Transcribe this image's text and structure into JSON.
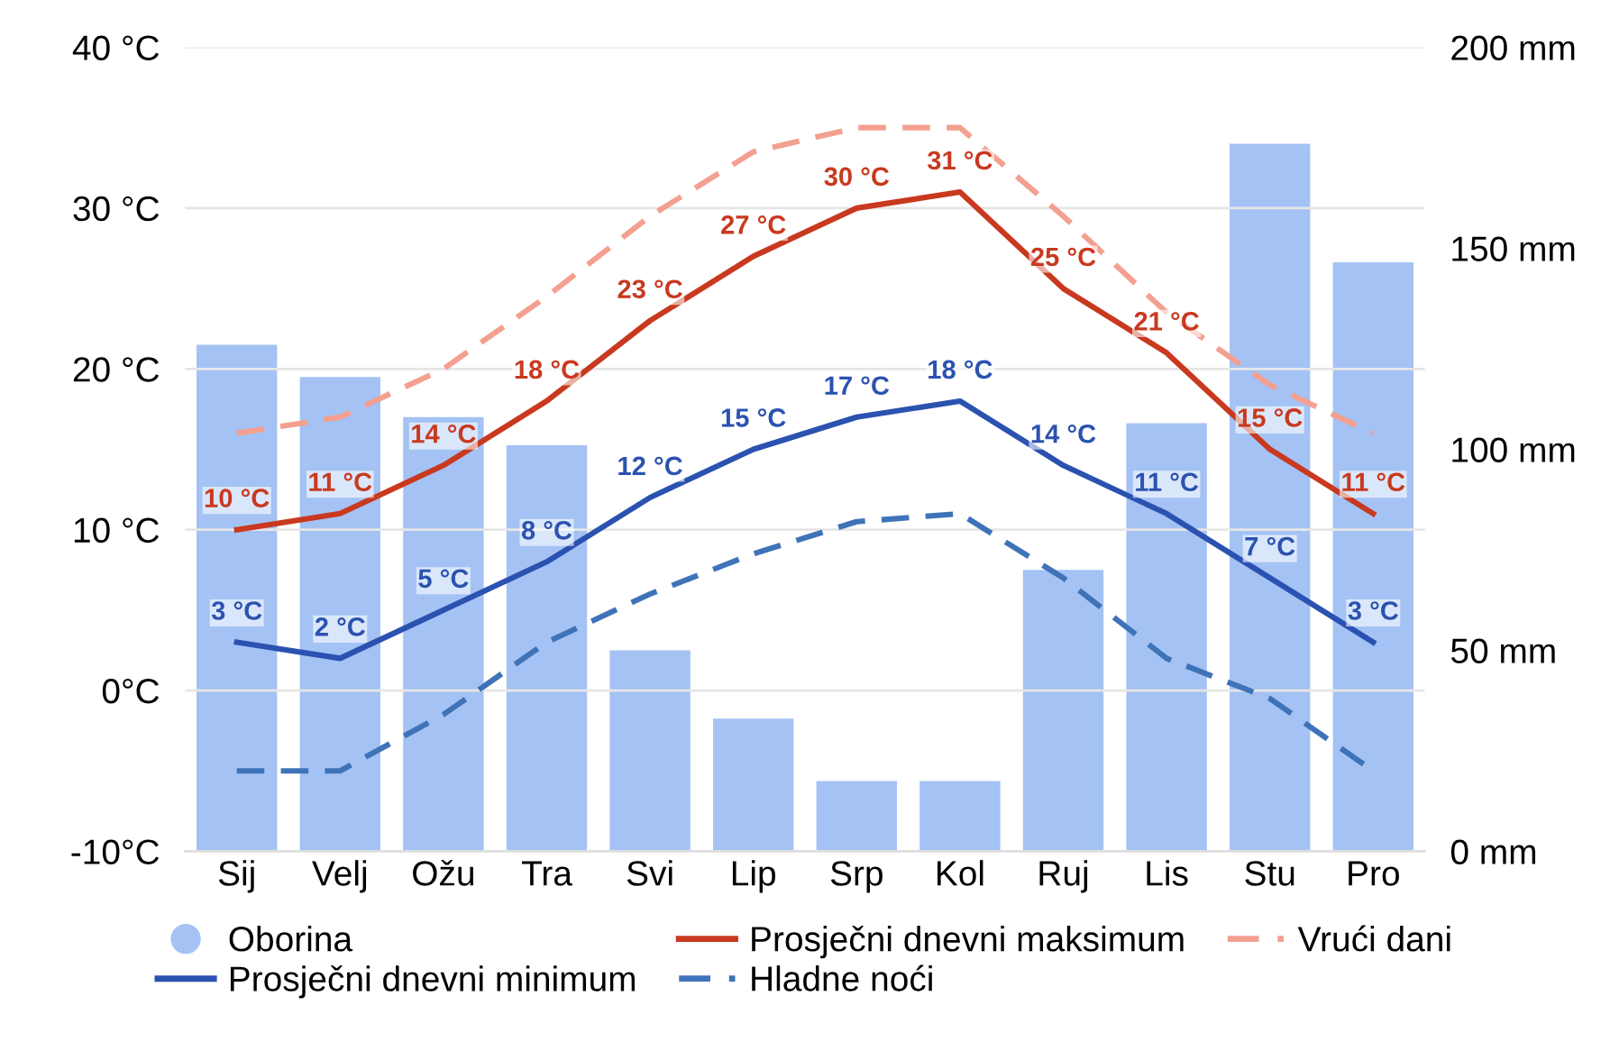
{
  "chart_data": {
    "type": "line",
    "categories": [
      "Sij",
      "Velj",
      "Ožu",
      "Tra",
      "Svi",
      "Lip",
      "Srp",
      "Kol",
      "Ruj",
      "Lis",
      "Stu",
      "Pro"
    ],
    "series": [
      {
        "name": "Oborina",
        "type": "bar",
        "axis": "y2",
        "color": "#a4c2f4",
        "values": [
          126,
          118,
          108,
          101,
          50,
          33,
          17.5,
          17.5,
          70,
          106.5,
          176,
          146.5
        ]
      },
      {
        "name": "Prosječni dnevni maksimum",
        "color": "#c9391f",
        "line_style": "solid",
        "values": [
          10,
          11,
          14,
          18,
          23,
          27,
          30,
          31,
          25,
          21,
          15,
          11
        ],
        "value_labels": [
          "10 °C",
          "11 °C",
          "14 °C",
          "18 °C",
          "23 °C",
          "27 °C",
          "30 °C",
          "31 °C",
          "25 °C",
          "21 °C",
          "15 °C",
          "11 °C"
        ]
      },
      {
        "name": "Vrući dani",
        "color": "#f4a090",
        "line_style": "dashed",
        "values": [
          16,
          17,
          20,
          24.5,
          29.5,
          33.5,
          35,
          35,
          29.5,
          23.5,
          19,
          16
        ]
      },
      {
        "name": "Prosječni dnevni minimum",
        "color": "#2b52b0",
        "line_style": "solid",
        "values": [
          3,
          2,
          5,
          8,
          12,
          15,
          17,
          18,
          14,
          11,
          7,
          3
        ],
        "value_labels": [
          "3 °C",
          "2 °C",
          "5 °C",
          "8 °C",
          "12 °C",
          "15 °C",
          "17 °C",
          "18 °C",
          "14 °C",
          "11 °C",
          "7 °C",
          "3 °C"
        ]
      },
      {
        "name": "Hladne noći",
        "color": "#3f73b8",
        "line_style": "dashed",
        "values": [
          -5,
          -5,
          -1.5,
          3,
          6,
          8.5,
          10.5,
          11,
          7,
          2,
          -0.5,
          -5
        ]
      }
    ],
    "ylim": [
      -10,
      40
    ],
    "yticks": [
      {
        "value": -10,
        "label": "-10°C"
      },
      {
        "value": 0,
        "label": "0°C"
      },
      {
        "value": 10,
        "label": "10 °C"
      },
      {
        "value": 20,
        "label": "20 °C"
      },
      {
        "value": 30,
        "label": "30 °C"
      },
      {
        "value": 40,
        "label": "40 °C"
      }
    ],
    "y2lim": [
      0,
      200
    ],
    "y2ticks": [
      {
        "value": 0,
        "label": "0 mm"
      },
      {
        "value": 50,
        "label": "50 mm"
      },
      {
        "value": 100,
        "label": "100 mm"
      },
      {
        "value": 150,
        "label": "150 mm"
      },
      {
        "value": 200,
        "label": "200 mm"
      }
    ],
    "grid": "y",
    "legend": "bottom",
    "marker": "none"
  }
}
